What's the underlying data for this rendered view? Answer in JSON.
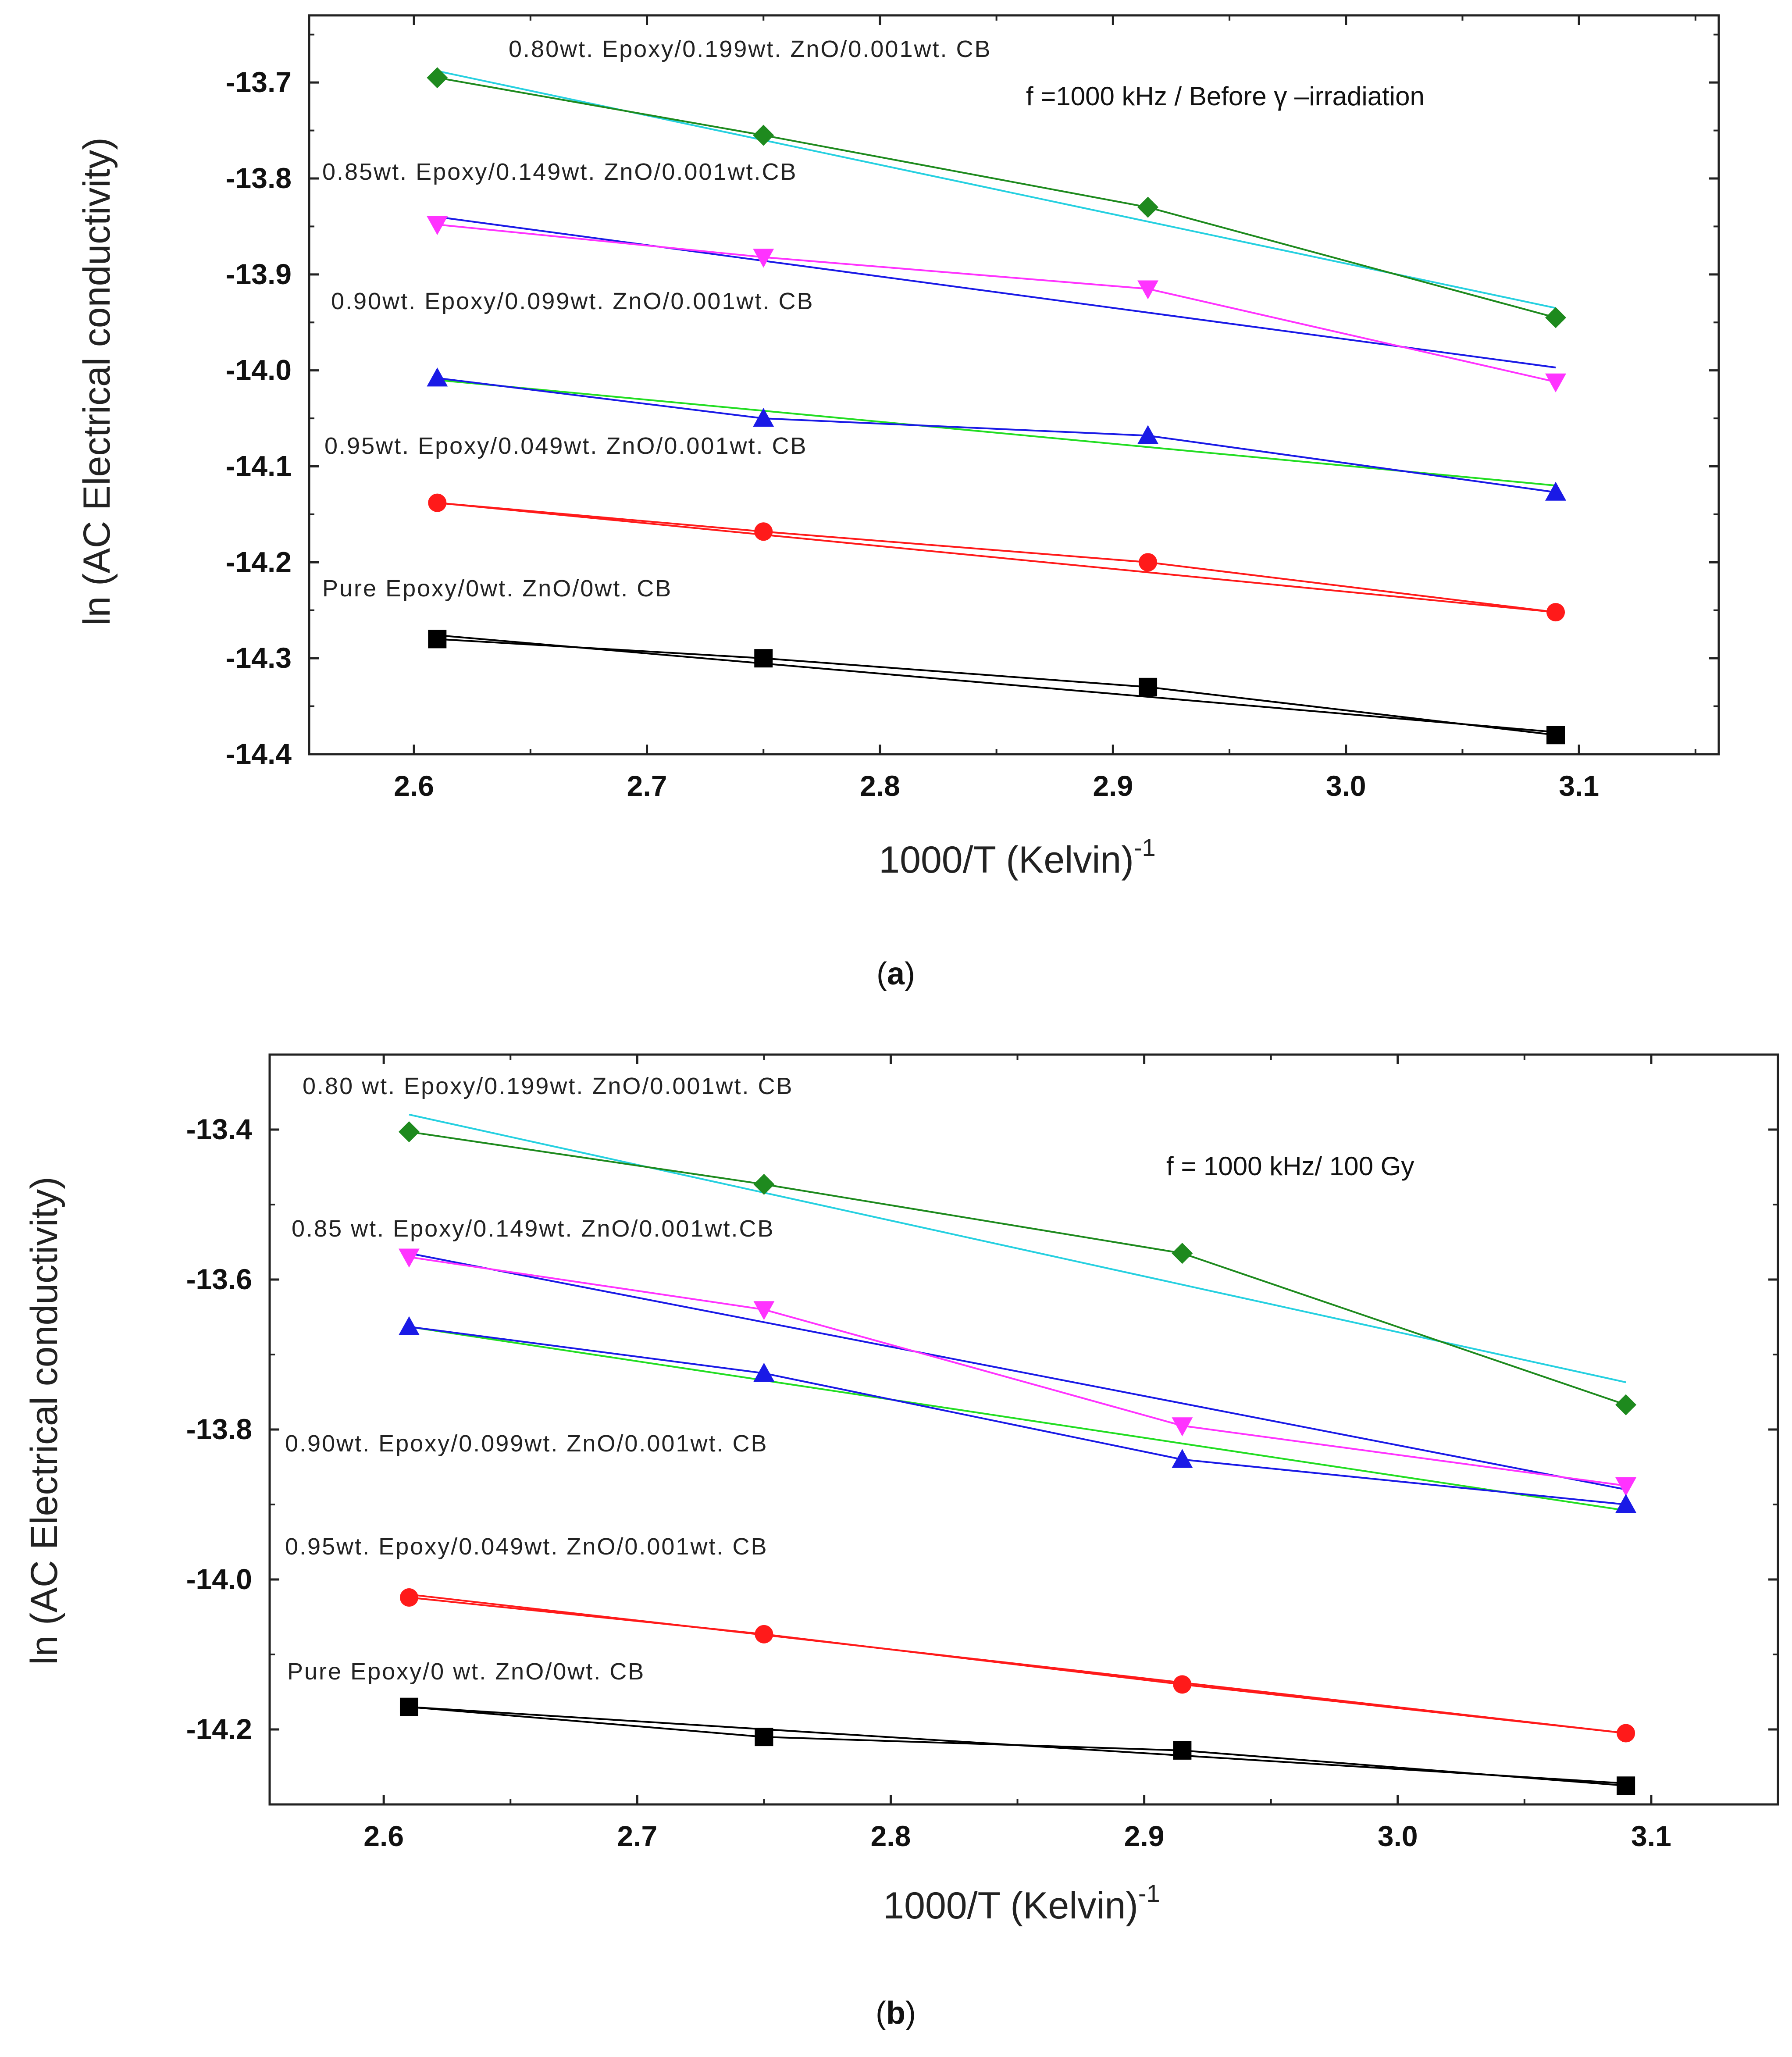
{
  "chart_data": [
    {
      "type": "line",
      "panel_label": "(a)",
      "panel_letter": "a",
      "xlabel_main": "1000/T  (Kelvin)",
      "xlabel_sup": "-1",
      "ylabel": "ln (AC Electrical conductivity)",
      "annotation": "f =1000 kHz / Before γ –irradiation",
      "xlim": [
        2.555,
        3.16
      ],
      "ylim": [
        -14.4,
        -13.63
      ],
      "xticks": [
        2.6,
        2.7,
        2.8,
        2.9,
        3.0,
        3.1
      ],
      "xtick_labels": [
        "2.6",
        "2.7",
        "2.8",
        "2.9",
        "3.0",
        "3.1"
      ],
      "yticks": [
        -13.7,
        -13.8,
        -13.9,
        -14.0,
        -14.1,
        -14.2,
        -14.3,
        -14.4
      ],
      "ytick_labels": [
        "-13.7",
        "-13.8",
        "-13.9",
        "-14.0",
        "-14.1",
        "-14.2",
        "-14.3",
        "-14.4"
      ],
      "x": [
        2.61,
        2.75,
        2.915,
        3.09
      ],
      "series": [
        {
          "name": "0.80wt. Epoxy/0.199wt. ZnO/0.001wt. CB",
          "marker": "diamond",
          "color": "#1e8a1e",
          "fit_color": "#26d0e0",
          "values": [
            -13.695,
            -13.755,
            -13.83,
            -13.945
          ],
          "fit": [
            -13.688,
            -13.935
          ]
        },
        {
          "name": "0.85wt. Epoxy/0.149wt. ZnO/0.001wt.CB",
          "marker": "triangle-down",
          "color": "#ff33ff",
          "fit_color": "#1a1ae6",
          "values": [
            -13.848,
            -13.882,
            -13.915,
            -14.012
          ],
          "fit": [
            -13.84,
            -13.997
          ]
        },
        {
          "name": "0.90wt. Epoxy/0.099wt. ZnO/0.001wt. CB",
          "marker": "triangle-up",
          "color": "#1a1ae6",
          "fit_color": "#22dd22",
          "values": [
            -14.008,
            -14.05,
            -14.068,
            -14.127
          ],
          "fit": [
            -14.01,
            -14.12
          ]
        },
        {
          "name": "0.95wt. Epoxy/0.049wt. ZnO/0.001wt. CB",
          "marker": "circle",
          "color": "#ff1a1a",
          "fit_color": "#ff1a1a",
          "values": [
            -14.138,
            -14.168,
            -14.2,
            -14.252
          ],
          "fit": [
            -14.138,
            -14.252
          ]
        },
        {
          "name": "Pure Epoxy/0wt. ZnO/0wt. CB",
          "marker": "square",
          "color": "#000000",
          "fit_color": "#000000",
          "values": [
            -14.28,
            -14.3,
            -14.33,
            -14.38
          ],
          "fit": [
            -14.276,
            -14.377
          ]
        }
      ]
    },
    {
      "type": "line",
      "panel_label": "(b)",
      "panel_letter": "b",
      "xlabel_main": "1000/T   (Kelvin)",
      "xlabel_sup": "-1",
      "ylabel": "ln (AC Electrical conductivity)",
      "annotation": "f = 1000 kHz/ 100 Gy",
      "xlim": [
        2.555,
        3.15
      ],
      "ylim": [
        -14.3,
        -13.3
      ],
      "xticks": [
        2.6,
        2.7,
        2.8,
        2.9,
        3.0,
        3.1
      ],
      "xtick_labels": [
        "2.6",
        "2.7",
        "2.8",
        "2.9",
        "3.0",
        "3.1"
      ],
      "yticks": [
        -13.4,
        -13.6,
        -13.8,
        -14.0,
        -14.2
      ],
      "ytick_labels": [
        "-13.4",
        "-13.6",
        "-13.8",
        "-14.0",
        "-14.2"
      ],
      "x": [
        2.61,
        2.75,
        2.915,
        3.09
      ],
      "series": [
        {
          "name": "0.80 wt. Epoxy/0.199wt. ZnO/0.001wt. CB",
          "marker": "diamond",
          "color": "#1e8a1e",
          "fit_color": "#26d0e0",
          "values": [
            -13.403,
            -13.473,
            -13.565,
            -13.767
          ],
          "fit": [
            -13.38,
            -13.737
          ]
        },
        {
          "name": "0.85 wt. Epoxy/0.149wt. ZnO/0.001wt.CB",
          "marker": "triangle-down",
          "color": "#ff33ff",
          "fit_color": "#1a1ae6",
          "values": [
            -13.57,
            -13.64,
            -13.795,
            -13.875
          ],
          "fit": [
            -13.565,
            -13.88
          ]
        },
        {
          "name": "0.90wt. Epoxy/0.099wt. ZnO/0.001wt. CB",
          "marker": "triangle-up",
          "color": "#1a1ae6",
          "fit_color": "#22dd22",
          "values": [
            -13.663,
            -13.725,
            -13.84,
            -13.9
          ],
          "fit": [
            -13.663,
            -13.908
          ]
        },
        {
          "name": "0.95wt. Epoxy/0.049wt. ZnO/0.001wt. CB",
          "marker": "circle",
          "color": "#ff1a1a",
          "fit_color": "#ff1a1a",
          "values": [
            -14.024,
            -14.073,
            -14.14,
            -14.205
          ],
          "fit": [
            -14.02,
            -14.205
          ]
        },
        {
          "name": "Pure Epoxy/0 wt. ZnO/0wt. CB",
          "marker": "square",
          "color": "#000000",
          "fit_color": "#000000",
          "values": [
            -14.17,
            -14.21,
            -14.228,
            -14.275
          ],
          "fit": [
            -14.17,
            -14.272
          ]
        }
      ]
    }
  ]
}
